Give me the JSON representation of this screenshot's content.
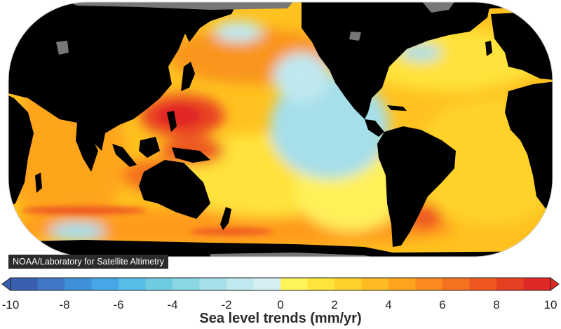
{
  "credit": "NOAA/Laboratory for Satellite Altimetry",
  "legend": {
    "title": "Sea level trends (mm/yr)",
    "min": -10,
    "max": 10,
    "ticks": [
      "-10",
      "-8",
      "-6",
      "-4",
      "-2",
      "0",
      "2",
      "4",
      "6",
      "8",
      "10"
    ],
    "colors": [
      "#3b5fb0",
      "#3f78c4",
      "#3f90d8",
      "#47a7e6",
      "#55bde8",
      "#6ecbe0",
      "#89d6e4",
      "#a6dfea",
      "#bfe8ef",
      "#d6eef2",
      "#fff35a",
      "#ffe43a",
      "#ffd12a",
      "#ffbb22",
      "#ffa21e",
      "#fb8a1e",
      "#f5701f",
      "#ee5820",
      "#e73f22",
      "#e02826"
    ]
  },
  "map_colors": {
    "land": "#000000",
    "ice": "#777777",
    "ocean_base": "#ffc21f"
  }
}
